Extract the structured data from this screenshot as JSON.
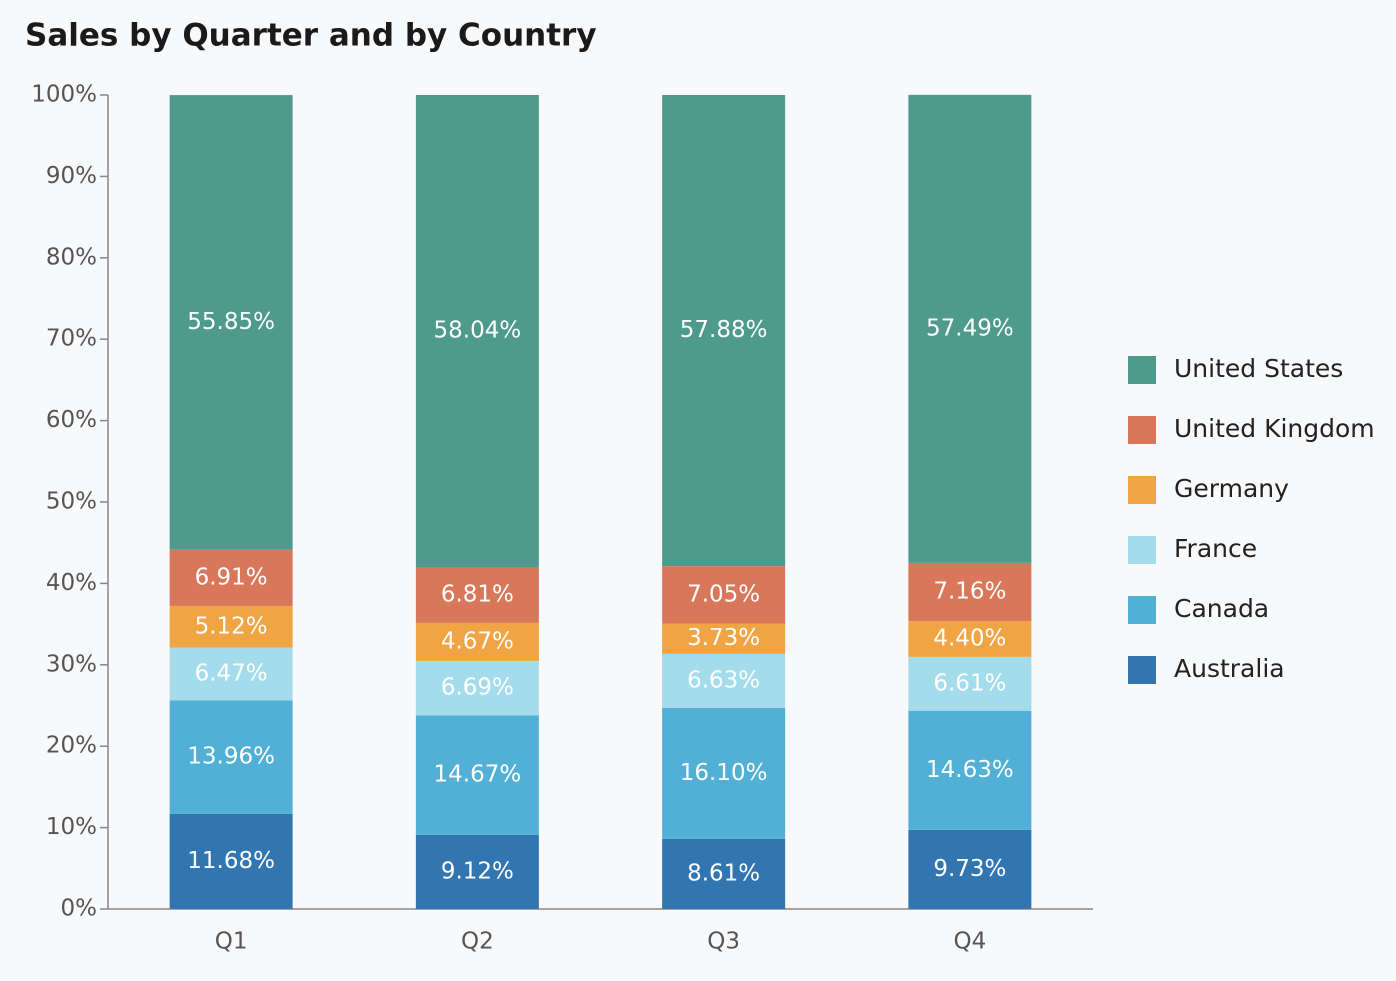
{
  "chart_data": {
    "type": "stacked_bar_100",
    "title": "Sales by Quarter and by Country",
    "categories": [
      "Q1",
      "Q2",
      "Q3",
      "Q4"
    ],
    "series": [
      {
        "name": "Australia",
        "color": "#3276b1",
        "values": [
          11.68,
          9.12,
          8.61,
          9.73
        ],
        "value_labels": [
          "11.68%",
          "9.12%",
          "8.61%",
          "9.73%"
        ]
      },
      {
        "name": "Canada",
        "color": "#52b0d6",
        "values": [
          13.96,
          14.67,
          16.1,
          14.63
        ],
        "value_labels": [
          "13.96%",
          "14.67%",
          "16.10%",
          "14.63%"
        ]
      },
      {
        "name": "France",
        "color": "#a4dcec",
        "values": [
          6.47,
          6.69,
          6.63,
          6.61
        ],
        "value_labels": [
          "6.47%",
          "6.69%",
          "6.63%",
          "6.61%"
        ]
      },
      {
        "name": "Germany",
        "color": "#f0a444",
        "values": [
          5.12,
          4.67,
          3.73,
          4.4
        ],
        "value_labels": [
          "5.12%",
          "4.67%",
          "3.73%",
          "4.40%"
        ]
      },
      {
        "name": "United Kingdom",
        "color": "#d9775a",
        "values": [
          6.91,
          6.81,
          7.05,
          7.16
        ],
        "value_labels": [
          "6.91%",
          "6.81%",
          "7.05%",
          "7.16%"
        ]
      },
      {
        "name": "United States",
        "color": "#4e9a8d",
        "values": [
          55.85,
          58.04,
          57.88,
          57.49
        ],
        "value_labels": [
          "55.85%",
          "58.04%",
          "57.88%",
          "57.49%"
        ]
      }
    ],
    "ylim": [
      0,
      100
    ],
    "yticks": [
      {
        "value": 0,
        "label": "0%"
      },
      {
        "value": 10,
        "label": "10%"
      },
      {
        "value": 20,
        "label": "20%"
      },
      {
        "value": 30,
        "label": "30%"
      },
      {
        "value": 40,
        "label": "40%"
      },
      {
        "value": 50,
        "label": "50%"
      },
      {
        "value": 60,
        "label": "60%"
      },
      {
        "value": 70,
        "label": "70%"
      },
      {
        "value": 80,
        "label": "80%"
      },
      {
        "value": 90,
        "label": "90%"
      },
      {
        "value": 100,
        "label": "100%"
      }
    ],
    "legend": "right"
  }
}
